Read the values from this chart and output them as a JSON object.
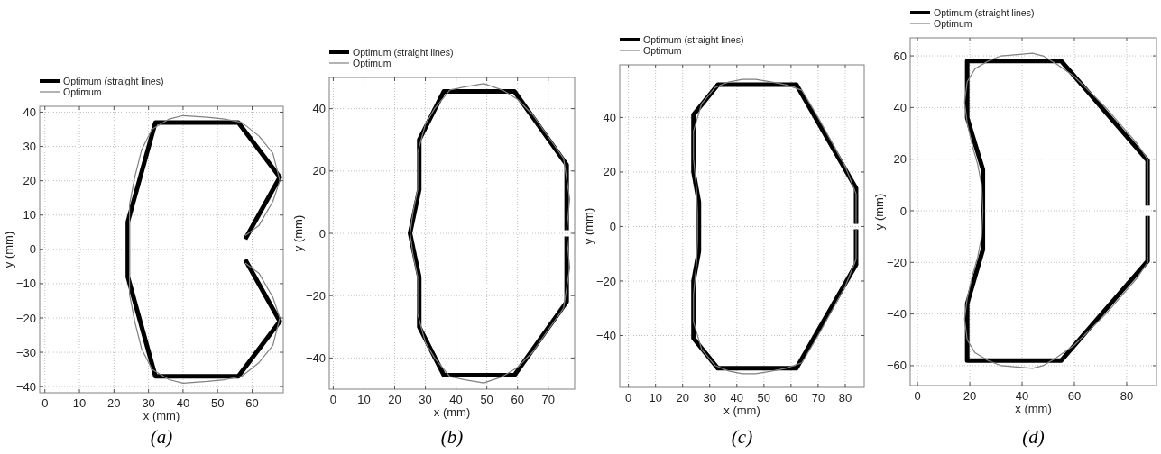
{
  "chart_data": [
    {
      "type": "line",
      "xlabel": "x (mm)",
      "ylabel": "y (mm)",
      "annotations": [
        "(a)"
      ],
      "xlim": [
        -1.5,
        69
      ],
      "ylim": [
        -41.8,
        41.7
      ],
      "xticks": [
        0,
        10,
        20,
        30,
        40,
        50,
        60
      ],
      "yticks": [
        -40,
        -30,
        -20,
        -10,
        0,
        10,
        20,
        30,
        40
      ],
      "grid": true,
      "legend": "top left",
      "series": [
        {
          "name": "Optimum (straight lines)",
          "color": "#000000",
          "x": [
            58,
            68,
            56,
            32,
            24,
            24,
            32,
            56,
            68,
            58
          ],
          "values": [
            3,
            21,
            37,
            37,
            8,
            -8,
            -37,
            -37,
            -21,
            -3
          ]
        },
        {
          "name": "Optimum",
          "color": "#808080",
          "x": [
            58,
            62,
            66,
            68,
            66,
            62,
            57,
            52,
            47,
            40,
            36,
            31,
            28,
            26,
            24.5,
            24.5,
            24.5,
            24.5,
            26,
            28,
            31,
            36,
            40,
            47,
            52,
            57,
            62,
            66,
            68,
            66,
            62,
            58
          ],
          "values": [
            4,
            7,
            14,
            20,
            28,
            33,
            37,
            38,
            38.5,
            39,
            38,
            35,
            29,
            21,
            13,
            5,
            -5,
            -13,
            -21,
            -29,
            -35,
            -38,
            -39,
            -38.5,
            -38,
            -37,
            -33,
            -28,
            -20,
            -14,
            -7,
            -4
          ]
        }
      ]
    },
    {
      "type": "line",
      "xlabel": "x (mm)",
      "ylabel": "y (mm)",
      "annotations": [
        "(b)"
      ],
      "xlim": [
        -1.3,
        78.6
      ],
      "ylim": [
        -50,
        50
      ],
      "xticks": [
        0,
        10,
        20,
        30,
        40,
        50,
        60,
        70
      ],
      "yticks": [
        -40,
        -20,
        0,
        20,
        40
      ],
      "grid": true,
      "legend": "top left",
      "series": [
        {
          "name": "Optimum (straight lines)",
          "color": "#000000",
          "x": [
            76,
            76,
            59,
            36,
            28,
            28,
            25,
            28,
            28,
            36,
            59,
            76,
            76
          ],
          "values": [
            1,
            22,
            45.5,
            45.5,
            30,
            14,
            0,
            -14,
            -30,
            -45.5,
            -45.5,
            -22,
            -1
          ]
        },
        {
          "name": "Optimum",
          "color": "#808080",
          "x": [
            76,
            77,
            75,
            70,
            65,
            60,
            55,
            49,
            43,
            38,
            33,
            30,
            27.5,
            27.5,
            26,
            25,
            26,
            27.5,
            27.5,
            30,
            33,
            38,
            43,
            49,
            55,
            60,
            65,
            70,
            75,
            77,
            76
          ],
          "values": [
            1,
            11,
            24,
            31,
            38,
            43,
            46,
            48,
            47,
            46,
            40,
            35,
            26,
            14,
            7,
            0,
            -7,
            -14,
            -26,
            -35,
            -40,
            -46,
            -47,
            -48,
            -46,
            -43,
            -38,
            -31,
            -24,
            -11,
            -1
          ]
        }
      ]
    },
    {
      "type": "line",
      "xlabel": "x (mm)",
      "ylabel": "y (mm)",
      "annotations": [
        "(c)"
      ],
      "xlim": [
        -3.2,
        87
      ],
      "ylim": [
        -59,
        59.3
      ],
      "xticks": [
        0,
        10,
        20,
        30,
        40,
        50,
        60,
        70,
        80
      ],
      "yticks": [
        -40,
        -20,
        0,
        20,
        40
      ],
      "grid": true,
      "legend": "top left",
      "series": [
        {
          "name": "Optimum (straight lines)",
          "color": "#000000",
          "x": [
            84,
            84,
            62,
            33,
            24,
            24,
            26,
            26,
            24,
            24,
            33,
            62,
            84,
            84
          ],
          "values": [
            1,
            14,
            52,
            52,
            41,
            20,
            9,
            -9,
            -20,
            -41,
            -52,
            -52,
            -14,
            -1
          ]
        },
        {
          "name": "Optimum",
          "color": "#808080",
          "x": [
            84,
            84,
            80,
            75,
            70,
            64,
            58,
            53,
            47,
            42,
            37,
            32,
            27,
            24,
            24,
            25,
            25.5,
            25.5,
            25,
            24,
            24,
            27,
            32,
            37,
            42,
            47,
            53,
            58,
            64,
            70,
            75,
            80,
            84,
            84
          ],
          "values": [
            1,
            12,
            22,
            31,
            40,
            50,
            52,
            53,
            54,
            54,
            53,
            51,
            45,
            35,
            25,
            15,
            5,
            -5,
            -15,
            -25,
            -35,
            -45,
            -51,
            -53,
            -54,
            -54,
            -53,
            -52,
            -50,
            -40,
            -31,
            -22,
            -12,
            -1
          ]
        }
      ]
    },
    {
      "type": "line",
      "xlabel": "x (mm)",
      "ylabel": "y (mm)",
      "annotations": [
        "(d)"
      ],
      "xlim": [
        -2.8,
        91.4
      ],
      "ylim": [
        -67.7,
        67
      ],
      "xticks": [
        0,
        20,
        40,
        60,
        80
      ],
      "yticks": [
        -60,
        -40,
        -20,
        0,
        20,
        40,
        60
      ],
      "grid": true,
      "legend": "top left",
      "series": [
        {
          "name": "Optimum (straight lines)",
          "color": "#000000",
          "x": [
            88,
            88,
            55,
            19,
            19,
            25,
            25,
            19,
            19,
            55,
            88,
            88
          ],
          "values": [
            2,
            19.5,
            58,
            58,
            36,
            16,
            -15,
            -36,
            -58,
            -58,
            -19.5,
            -2
          ]
        },
        {
          "name": "Optimum",
          "color": "#808080",
          "x": [
            88,
            88,
            84,
            78,
            72,
            66,
            60,
            53,
            48,
            44,
            38,
            32,
            27,
            22,
            19,
            18,
            19,
            21,
            23,
            24.5,
            25,
            24.5,
            23,
            21,
            19,
            18,
            19,
            22,
            27,
            32,
            38,
            44,
            48,
            53,
            60,
            66,
            72,
            78,
            84,
            88,
            88
          ],
          "values": [
            2,
            20,
            26,
            33,
            40,
            46,
            52,
            57,
            60,
            61,
            60.5,
            60,
            58,
            55,
            50,
            42,
            34,
            25,
            18,
            10,
            0,
            -10,
            -18,
            -25,
            -34,
            -42,
            -50,
            -55,
            -58,
            -60,
            -60.5,
            -61,
            -60,
            -57,
            -52,
            -46,
            -40,
            -33,
            -26,
            -20,
            -2
          ]
        }
      ]
    }
  ]
}
